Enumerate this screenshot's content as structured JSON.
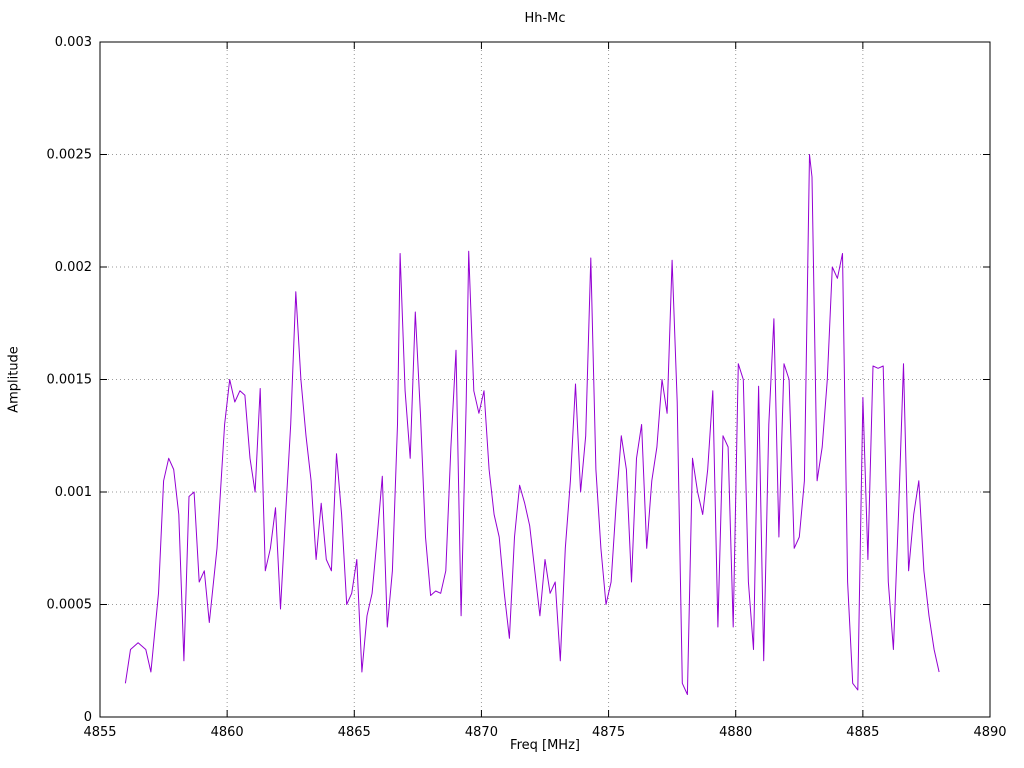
{
  "chart_data": {
    "type": "line",
    "title": "Hh-Mc",
    "xlabel": "Freq [MHz]",
    "ylabel": "Amplitude",
    "xlim": [
      4855,
      4890
    ],
    "ylim": [
      0,
      0.003
    ],
    "grid": true,
    "grid_style": "dotted-gray",
    "legend": "none",
    "line_color": "#9400d3",
    "xticks": {
      "values": [
        4855,
        4860,
        4865,
        4870,
        4875,
        4880,
        4885,
        4890
      ],
      "labels": [
        "4855",
        "4860",
        "4865",
        "4870",
        "4875",
        "4880",
        "4885",
        "4890"
      ]
    },
    "yticks": {
      "values": [
        0,
        0.0005,
        0.001,
        0.0015,
        0.002,
        0.0025,
        0.003
      ],
      "labels": [
        "0",
        "0.0005",
        "0.001",
        "0.0015",
        "0.002",
        "0.0025",
        "0.003"
      ]
    },
    "series": [
      {
        "name": "Hh-Mc",
        "points": [
          [
            4856.0,
            0.00015
          ],
          [
            4856.2,
            0.0003
          ],
          [
            4856.5,
            0.00033
          ],
          [
            4856.8,
            0.0003
          ],
          [
            4857.0,
            0.0002
          ],
          [
            4857.3,
            0.00055
          ],
          [
            4857.5,
            0.00105
          ],
          [
            4857.7,
            0.00115
          ],
          [
            4857.9,
            0.0011
          ],
          [
            4858.1,
            0.0009
          ],
          [
            4858.3,
            0.00025
          ],
          [
            4858.5,
            0.00098
          ],
          [
            4858.7,
            0.001
          ],
          [
            4858.9,
            0.0006
          ],
          [
            4859.1,
            0.00065
          ],
          [
            4859.3,
            0.00042
          ],
          [
            4859.6,
            0.00075
          ],
          [
            4859.9,
            0.0013
          ],
          [
            4860.1,
            0.0015
          ],
          [
            4860.3,
            0.0014
          ],
          [
            4860.5,
            0.00145
          ],
          [
            4860.7,
            0.00143
          ],
          [
            4860.9,
            0.00115
          ],
          [
            4861.1,
            0.001
          ],
          [
            4861.3,
            0.00146
          ],
          [
            4861.5,
            0.00065
          ],
          [
            4861.7,
            0.00075
          ],
          [
            4861.9,
            0.00093
          ],
          [
            4862.1,
            0.00048
          ],
          [
            4862.3,
            0.0009
          ],
          [
            4862.5,
            0.0013
          ],
          [
            4862.7,
            0.00189
          ],
          [
            4862.9,
            0.0015
          ],
          [
            4863.1,
            0.00125
          ],
          [
            4863.3,
            0.00105
          ],
          [
            4863.5,
            0.0007
          ],
          [
            4863.7,
            0.00095
          ],
          [
            4863.9,
            0.0007
          ],
          [
            4864.1,
            0.00065
          ],
          [
            4864.3,
            0.00117
          ],
          [
            4864.5,
            0.0009
          ],
          [
            4864.7,
            0.0005
          ],
          [
            4864.9,
            0.00055
          ],
          [
            4865.1,
            0.0007
          ],
          [
            4865.3,
            0.0002
          ],
          [
            4865.5,
            0.00045
          ],
          [
            4865.7,
            0.00055
          ],
          [
            4865.9,
            0.0008
          ],
          [
            4866.1,
            0.00107
          ],
          [
            4866.3,
            0.0004
          ],
          [
            4866.5,
            0.00065
          ],
          [
            4866.7,
            0.0013
          ],
          [
            4866.8,
            0.00206
          ],
          [
            4867.0,
            0.00145
          ],
          [
            4867.2,
            0.00115
          ],
          [
            4867.4,
            0.0018
          ],
          [
            4867.6,
            0.00135
          ],
          [
            4867.8,
            0.0008
          ],
          [
            4868.0,
            0.00054
          ],
          [
            4868.2,
            0.00056
          ],
          [
            4868.4,
            0.00055
          ],
          [
            4868.6,
            0.00065
          ],
          [
            4868.8,
            0.0012
          ],
          [
            4869.0,
            0.00163
          ],
          [
            4869.2,
            0.00045
          ],
          [
            4869.4,
            0.0014
          ],
          [
            4869.5,
            0.00207
          ],
          [
            4869.7,
            0.00145
          ],
          [
            4869.9,
            0.00135
          ],
          [
            4870.1,
            0.00145
          ],
          [
            4870.3,
            0.0011
          ],
          [
            4870.5,
            0.0009
          ],
          [
            4870.7,
            0.0008
          ],
          [
            4870.9,
            0.00055
          ],
          [
            4871.1,
            0.00035
          ],
          [
            4871.3,
            0.0008
          ],
          [
            4871.5,
            0.00103
          ],
          [
            4871.7,
            0.00095
          ],
          [
            4871.9,
            0.00085
          ],
          [
            4872.1,
            0.00065
          ],
          [
            4872.3,
            0.00045
          ],
          [
            4872.5,
            0.0007
          ],
          [
            4872.7,
            0.00055
          ],
          [
            4872.9,
            0.0006
          ],
          [
            4873.1,
            0.00025
          ],
          [
            4873.3,
            0.00075
          ],
          [
            4873.5,
            0.00105
          ],
          [
            4873.7,
            0.00148
          ],
          [
            4873.9,
            0.001
          ],
          [
            4874.1,
            0.00125
          ],
          [
            4874.3,
            0.00204
          ],
          [
            4874.5,
            0.0011
          ],
          [
            4874.7,
            0.00075
          ],
          [
            4874.9,
            0.0005
          ],
          [
            4875.1,
            0.0006
          ],
          [
            4875.3,
            0.00095
          ],
          [
            4875.5,
            0.00125
          ],
          [
            4875.7,
            0.0011
          ],
          [
            4875.9,
            0.0006
          ],
          [
            4876.1,
            0.00115
          ],
          [
            4876.3,
            0.0013
          ],
          [
            4876.5,
            0.00075
          ],
          [
            4876.7,
            0.00105
          ],
          [
            4876.9,
            0.0012
          ],
          [
            4877.1,
            0.0015
          ],
          [
            4877.3,
            0.00135
          ],
          [
            4877.5,
            0.00203
          ],
          [
            4877.7,
            0.0014
          ],
          [
            4877.9,
            0.00015
          ],
          [
            4878.1,
            0.0001
          ],
          [
            4878.3,
            0.00115
          ],
          [
            4878.5,
            0.001
          ],
          [
            4878.7,
            0.0009
          ],
          [
            4878.9,
            0.0011
          ],
          [
            4879.1,
            0.00145
          ],
          [
            4879.3,
            0.0004
          ],
          [
            4879.5,
            0.00125
          ],
          [
            4879.7,
            0.0012
          ],
          [
            4879.9,
            0.0004
          ],
          [
            4880.1,
            0.00157
          ],
          [
            4880.3,
            0.0015
          ],
          [
            4880.5,
            0.0006
          ],
          [
            4880.7,
            0.0003
          ],
          [
            4880.9,
            0.00147
          ],
          [
            4881.1,
            0.00025
          ],
          [
            4881.3,
            0.0013
          ],
          [
            4881.5,
            0.00177
          ],
          [
            4881.7,
            0.0008
          ],
          [
            4881.9,
            0.00157
          ],
          [
            4882.1,
            0.0015
          ],
          [
            4882.3,
            0.00075
          ],
          [
            4882.5,
            0.0008
          ],
          [
            4882.7,
            0.00105
          ],
          [
            4882.9,
            0.0025
          ],
          [
            4883.0,
            0.0024
          ],
          [
            4883.2,
            0.00105
          ],
          [
            4883.4,
            0.0012
          ],
          [
            4883.6,
            0.0015
          ],
          [
            4883.8,
            0.002
          ],
          [
            4884.0,
            0.00195
          ],
          [
            4884.2,
            0.00206
          ],
          [
            4884.4,
            0.0006
          ],
          [
            4884.6,
            0.00015
          ],
          [
            4884.8,
            0.00012
          ],
          [
            4885.0,
            0.00142
          ],
          [
            4885.2,
            0.0007
          ],
          [
            4885.4,
            0.00156
          ],
          [
            4885.6,
            0.00155
          ],
          [
            4885.8,
            0.00156
          ],
          [
            4886.0,
            0.0006
          ],
          [
            4886.2,
            0.0003
          ],
          [
            4886.4,
            0.0009
          ],
          [
            4886.6,
            0.00157
          ],
          [
            4886.8,
            0.00065
          ],
          [
            4887.0,
            0.0009
          ],
          [
            4887.2,
            0.00105
          ],
          [
            4887.4,
            0.00065
          ],
          [
            4887.6,
            0.00045
          ],
          [
            4887.8,
            0.0003
          ],
          [
            4888.0,
            0.0002
          ]
        ]
      }
    ]
  }
}
